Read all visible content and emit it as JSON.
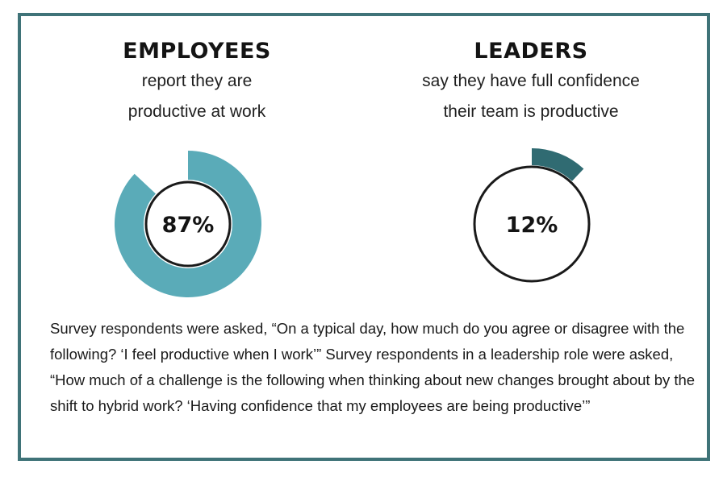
{
  "chart_data": [
    {
      "type": "pie",
      "title": "EMPLOYEES",
      "subtitle_lines": [
        "report they are",
        "productive at work"
      ],
      "value": 87,
      "center_label": "87%",
      "color": "#5aabb8"
    },
    {
      "type": "pie",
      "title": "LEADERS",
      "subtitle_lines": [
        "say they have full confidence",
        "their team is productive"
      ],
      "value": 12,
      "center_label": "12%",
      "color": "#306b72"
    }
  ],
  "footnote": "Survey respondents were asked, “On a typical day, how much do you agree or disagree with the following? ‘I feel productive when I work’” Survey respondents in a leadership role were asked, “How much of a challenge is the following when thinking about new changes brought about by the shift to hybrid work? ‘Having confidence that my employees are being productive’”",
  "colors": {
    "border": "#3f7378",
    "ring_outline": "#1a1a1a"
  }
}
